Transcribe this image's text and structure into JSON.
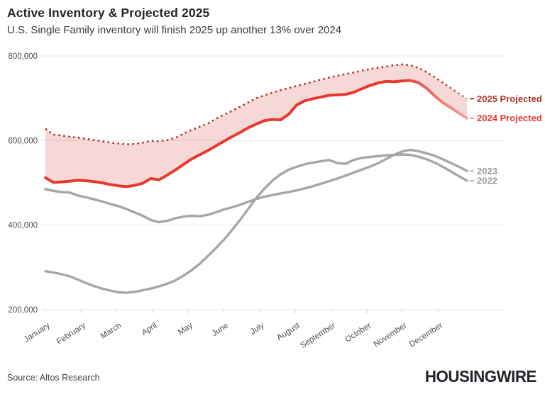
{
  "header": {
    "title": "Active Inventory & Projected 2025",
    "subtitle": "U.S. Single Family inventory will finish 2025 up another 13% over 2024"
  },
  "footer": {
    "source": "Source: Altos Research",
    "brand": "HOUSINGWIRE"
  },
  "colors": {
    "red_2025": "#b0342a",
    "red_2024": "#e8392e",
    "red_2024_faded": "#f4a29a",
    "gray_lines": "#a6a6a6",
    "legend_gray": "#9a9a9a",
    "band_fill": "rgba(215,82,73,0.22)",
    "gridline": "#e7e7e7",
    "axis_text": "#4d4d4d"
  },
  "chart_data": {
    "type": "line",
    "title": "Active Inventory & Projected 2025",
    "subtitle": "U.S. Single Family inventory will finish 2025 up another 13% over 2024",
    "x_resolution": "weekly (53 points, January through late December)",
    "xlabels": [
      "January",
      "February",
      "March",
      "April",
      "May",
      "June",
      "July",
      "August",
      "September",
      "October",
      "November",
      "December"
    ],
    "ylim": [
      200000,
      800000
    ],
    "yticks": [
      {
        "label": "800,000",
        "value": 800000
      },
      {
        "label": "600,000",
        "value": 600000
      },
      {
        "label": "400,000",
        "value": 400000
      },
      {
        "label": "200,000",
        "value": 200000
      }
    ],
    "grid": true,
    "legend_position": "right of line ends",
    "band_fill_between": [
      "2025 Projected",
      "2024 Projected"
    ],
    "series": [
      {
        "name": "2025 Projected",
        "style": "dotted",
        "color": "#b0342a",
        "values": [
          628000,
          614000,
          612000,
          609000,
          607000,
          604000,
          601000,
          598000,
          595000,
          593000,
          591000,
          592000,
          595000,
          599000,
          598000,
          601000,
          606000,
          616000,
          625000,
          632000,
          640000,
          651000,
          661000,
          670000,
          680000,
          690000,
          700000,
          707000,
          713000,
          719000,
          724000,
          729000,
          734000,
          739000,
          744000,
          749000,
          753000,
          757000,
          761000,
          765000,
          769000,
          772000,
          775000,
          778000,
          780000,
          778000,
          772000,
          762000,
          750000,
          737000,
          724000,
          711000,
          699000
        ]
      },
      {
        "name": "2024 Projected",
        "style": "solid, fades lighter at tail",
        "color": "#e8392e",
        "values": [
          512000,
          501000,
          502000,
          504000,
          506000,
          505000,
          503000,
          500000,
          496000,
          493000,
          491000,
          494000,
          499000,
          510000,
          507000,
          518000,
          530000,
          543000,
          556000,
          566000,
          576000,
          587000,
          598000,
          609000,
          619000,
          630000,
          639000,
          647000,
          650000,
          649000,
          662000,
          684000,
          694000,
          699000,
          703000,
          707000,
          708000,
          709000,
          714000,
          722000,
          730000,
          736000,
          740000,
          739000,
          741000,
          742000,
          737000,
          724000,
          706000,
          690000,
          678000,
          665000,
          653000
        ]
      },
      {
        "name": "2023",
        "style": "solid",
        "color": "#a6a6a6",
        "values": [
          485000,
          481000,
          478000,
          477000,
          470000,
          466000,
          461000,
          456000,
          450000,
          445000,
          438000,
          430000,
          422000,
          412000,
          407000,
          410000,
          416000,
          420000,
          422000,
          421000,
          424000,
          430000,
          437000,
          442000,
          448000,
          455000,
          462000,
          467000,
          471000,
          475000,
          478000,
          482000,
          487000,
          492000,
          498000,
          504000,
          510000,
          517000,
          524000,
          531000,
          538000,
          546000,
          556000,
          566000,
          574000,
          578000,
          575000,
          570000,
          564000,
          556000,
          547000,
          538000,
          528000
        ]
      },
      {
        "name": "2022",
        "style": "solid",
        "color": "#a6a6a6",
        "values": [
          291000,
          288000,
          284000,
          279000,
          271000,
          263000,
          256000,
          250000,
          245000,
          241000,
          240000,
          242000,
          246000,
          250000,
          255000,
          261000,
          269000,
          280000,
          293000,
          308000,
          326000,
          345000,
          365000,
          388000,
          412000,
          438000,
          464000,
          486000,
          505000,
          520000,
          531000,
          538000,
          544000,
          548000,
          551000,
          554000,
          547000,
          545000,
          554000,
          559000,
          561000,
          563000,
          565000,
          566000,
          567000,
          566000,
          562000,
          556000,
          548000,
          538000,
          527000,
          516000,
          505000
        ]
      }
    ]
  }
}
